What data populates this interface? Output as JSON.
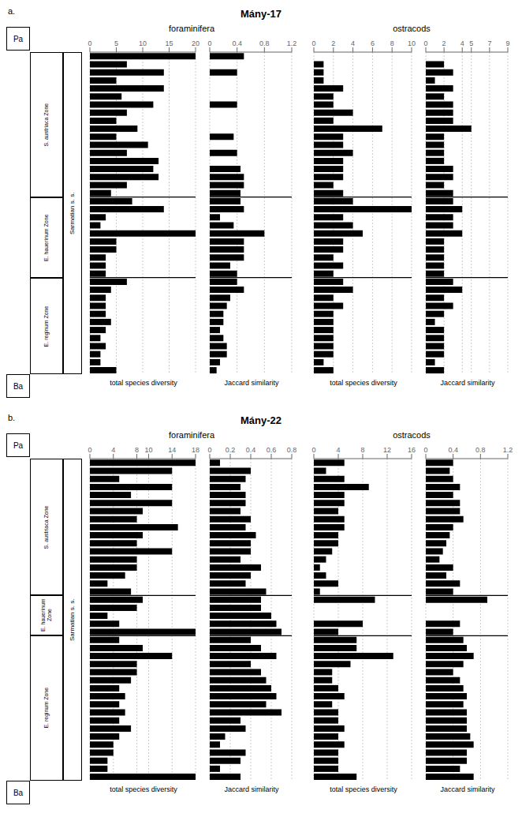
{
  "chart_data": [
    {
      "type": "bar",
      "orientation": "horizontal",
      "title": "Mány-17",
      "annotations": [
        "a.",
        "Pa",
        "Ba",
        "Sarmatian s. s."
      ],
      "color": "#000000",
      "grid": true,
      "tick_labels": "x",
      "categories": [
        null,
        null,
        null,
        null,
        null,
        null,
        null,
        null,
        null,
        null,
        null,
        null,
        null,
        null,
        null,
        null,
        null,
        null,
        null,
        null,
        null,
        null,
        null,
        null,
        null,
        null,
        null,
        null,
        null,
        null,
        null,
        null,
        null,
        null,
        null,
        null,
        null,
        null,
        null,
        null
      ],
      "zones": [
        {
          "label": "S. austriaca Zone",
          "start": 0,
          "end": 18
        },
        {
          "label": "E. hauerinum Zone",
          "start": 18,
          "end": 28
        },
        {
          "label": "E. reginum Zone",
          "start": 28,
          "end": 40
        }
      ],
      "groups": [
        {
          "name": "foraminifera",
          "panels": [
            {
              "xlabel": "total species diversity",
              "values": [
                20,
                7,
                14,
                5,
                14,
                6,
                12,
                7,
                5,
                9,
                5,
                11,
                7,
                13,
                12,
                13,
                7,
                4,
                8,
                14,
                3,
                2,
                20,
                5,
                5,
                3,
                3,
                3,
                7,
                4,
                3,
                3,
                3,
                4,
                3,
                2,
                3,
                2,
                2,
                5
              ],
              "xlim": [
                0,
                20
              ],
              "xticks": [
                0,
                5,
                10,
                15,
                20
              ]
            },
            {
              "xlabel": "Jaccard similarity",
              "values": [
                0.5,
                0.0,
                0.4,
                0.0,
                0.0,
                0.0,
                0.4,
                0.0,
                0.0,
                0.0,
                0.35,
                0.0,
                0.4,
                0.0,
                0.45,
                0.5,
                0.5,
                0.45,
                0.45,
                0.5,
                0.15,
                0.35,
                0.8,
                0.5,
                0.5,
                0.5,
                0.3,
                0.4,
                0.4,
                0.5,
                0.3,
                0.25,
                0.2,
                0.2,
                0.15,
                0.2,
                0.25,
                0.25,
                0.15,
                0.1
              ],
              "xlim": [
                0,
                1.2
              ],
              "xticks": [
                0,
                0.4,
                0.8,
                1.2
              ]
            }
          ]
        },
        {
          "name": "ostracods",
          "panels": [
            {
              "xlabel": "total species diversity",
              "values": [
                0,
                1,
                1,
                1,
                3,
                2,
                2,
                4,
                2,
                7,
                3,
                3,
                4,
                3,
                3,
                3,
                2,
                3,
                4,
                10,
                3,
                4,
                5,
                3,
                3,
                2,
                3,
                2,
                3,
                4,
                2,
                3,
                2,
                2,
                2,
                2,
                2,
                2,
                1,
                2
              ],
              "xlim": [
                0,
                10
              ],
              "xticks": [
                0,
                2,
                4,
                6,
                8,
                10
              ]
            },
            {
              "xlabel": "Jaccard similarity",
              "values": [
                0,
                2,
                3,
                1,
                3,
                2,
                3,
                3,
                3,
                5,
                2,
                2,
                2,
                2,
                3,
                3,
                2,
                3,
                3,
                4,
                3,
                3,
                4,
                2,
                2,
                2,
                2,
                2,
                3,
                4,
                2,
                3,
                2,
                1,
                2,
                2,
                2,
                2,
                1,
                2
              ],
              "xlim": [
                0,
                9
              ],
              "xticks": [
                0,
                2,
                4,
                5,
                7,
                9
              ]
            }
          ]
        }
      ]
    },
    {
      "type": "bar",
      "orientation": "horizontal",
      "title": "Mány-22",
      "annotations": [
        "b.",
        "Pa",
        "Ba",
        "Sarmatian s. s."
      ],
      "color": "#000000",
      "grid": true,
      "tick_labels": "x",
      "categories": [
        null,
        null,
        null,
        null,
        null,
        null,
        null,
        null,
        null,
        null,
        null,
        null,
        null,
        null,
        null,
        null,
        null,
        null,
        null,
        null,
        null,
        null,
        null,
        null,
        null,
        null,
        null,
        null,
        null,
        null,
        null,
        null,
        null,
        null,
        null,
        null,
        null,
        null,
        null,
        null
      ],
      "zones": [
        {
          "label": "S. austriaca Zone",
          "start": 0,
          "end": 17
        },
        {
          "label": "E. hauerinum Zone",
          "start": 17,
          "end": 22
        },
        {
          "label": "E. reginum Zone",
          "start": 22,
          "end": 40
        }
      ],
      "groups": [
        {
          "name": "foraminifera",
          "panels": [
            {
              "xlabel": "total species diversity",
              "values": [
                18,
                14,
                5,
                14,
                7,
                14,
                9,
                8,
                15,
                9,
                8,
                14,
                8,
                8,
                6,
                3,
                7,
                9,
                8,
                3,
                5,
                18,
                5,
                9,
                14,
                8,
                8,
                7,
                5,
                6,
                5,
                6,
                5,
                7,
                5,
                4,
                4,
                3,
                3,
                18
              ],
              "xlim": [
                0,
                18
              ],
              "xticks": [
                0,
                4,
                8,
                10,
                14,
                18
              ]
            },
            {
              "xlabel": "Jaccard similarity",
              "values": [
                0.1,
                0.4,
                0.35,
                0.3,
                0.35,
                0.35,
                0.3,
                0.4,
                0.35,
                0.45,
                0.4,
                0.4,
                0.3,
                0.5,
                0.4,
                0.35,
                0.55,
                0.5,
                0.5,
                0.6,
                0.65,
                0.7,
                0.4,
                0.5,
                0.65,
                0.4,
                0.5,
                0.55,
                0.6,
                0.65,
                0.55,
                0.7,
                0.3,
                0.35,
                0.15,
                0.1,
                0.35,
                0.3,
                0.1,
                0.3
              ],
              "xlim": [
                0,
                0.8
              ],
              "xticks": [
                0,
                0.2,
                0.4,
                0.6,
                0.8
              ]
            }
          ]
        },
        {
          "name": "ostracods",
          "panels": [
            {
              "xlabel": "total species diversity",
              "values": [
                5,
                2,
                5,
                9,
                5,
                5,
                4,
                5,
                5,
                4,
                4,
                3,
                2,
                1,
                2,
                4,
                1,
                10,
                0,
                0,
                8,
                4,
                7,
                7,
                13,
                6,
                3,
                3,
                4,
                5,
                3,
                4,
                4,
                5,
                4,
                5,
                4,
                4,
                4,
                7
              ],
              "xlim": [
                0,
                16
              ],
              "xticks": [
                0,
                4,
                8,
                12,
                16
              ]
            },
            {
              "xlabel": "Jaccard similarity",
              "values": [
                0.4,
                0.35,
                0.4,
                0.5,
                0.4,
                0.5,
                0.5,
                0.55,
                0.4,
                0.35,
                0.3,
                0.25,
                0.2,
                0.4,
                0.3,
                0.5,
                0.4,
                0.9,
                0.0,
                0.0,
                0.5,
                0.4,
                0.55,
                0.6,
                0.7,
                0.55,
                0.4,
                0.5,
                0.55,
                0.6,
                0.55,
                0.6,
                0.6,
                0.6,
                0.65,
                0.7,
                0.6,
                0.6,
                0.5,
                0.7
              ],
              "xlim": [
                0,
                1.2
              ],
              "xticks": [
                0,
                0.4,
                0.8,
                1.2
              ]
            }
          ]
        }
      ]
    }
  ]
}
